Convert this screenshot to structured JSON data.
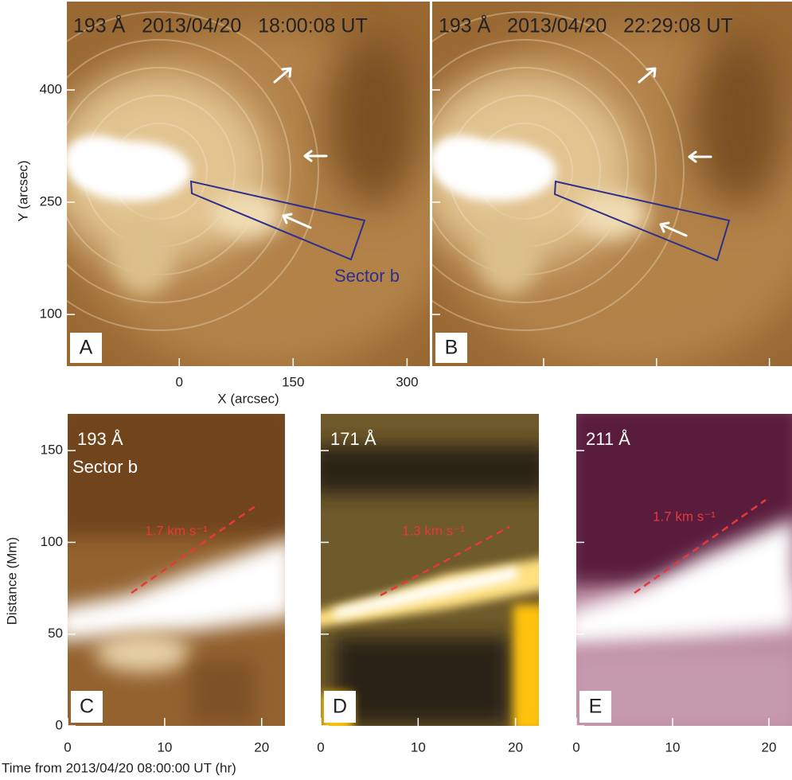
{
  "top": {
    "panels": [
      {
        "letter": "A",
        "title": "193 Å   2013/04/20   18:00:08 UT",
        "sector": "Sector b"
      },
      {
        "letter": "B",
        "title": "193 Å   2013/04/20   22:29:08 UT"
      }
    ],
    "xlabel": "X (arcsec)",
    "ylabel": "Y (arcsec)",
    "xlim": [
      -148,
      330
    ],
    "ylim": [
      31,
      518
    ],
    "xticks": [
      0,
      150,
      300
    ],
    "yticks": [
      100,
      250,
      400
    ]
  },
  "bottom": {
    "panels": [
      {
        "letter": "C",
        "wavelength": "193 Å",
        "sector": "Sector b",
        "speed": "1.7 km s⁻¹"
      },
      {
        "letter": "D",
        "wavelength": "171 Å",
        "speed": "1.3 km s⁻¹"
      },
      {
        "letter": "E",
        "wavelength": "211 Å",
        "speed": "1.7 km s⁻¹"
      }
    ],
    "xlabel": "Time from 2013/04/20 08:00:00 UT (hr)",
    "ylabel": "Distance (Mm)",
    "xlim": [
      0,
      22.4
    ],
    "ylim": [
      0,
      170
    ],
    "xticks": [
      0,
      10,
      20
    ],
    "yticks": [
      0,
      50,
      100,
      150
    ]
  }
}
